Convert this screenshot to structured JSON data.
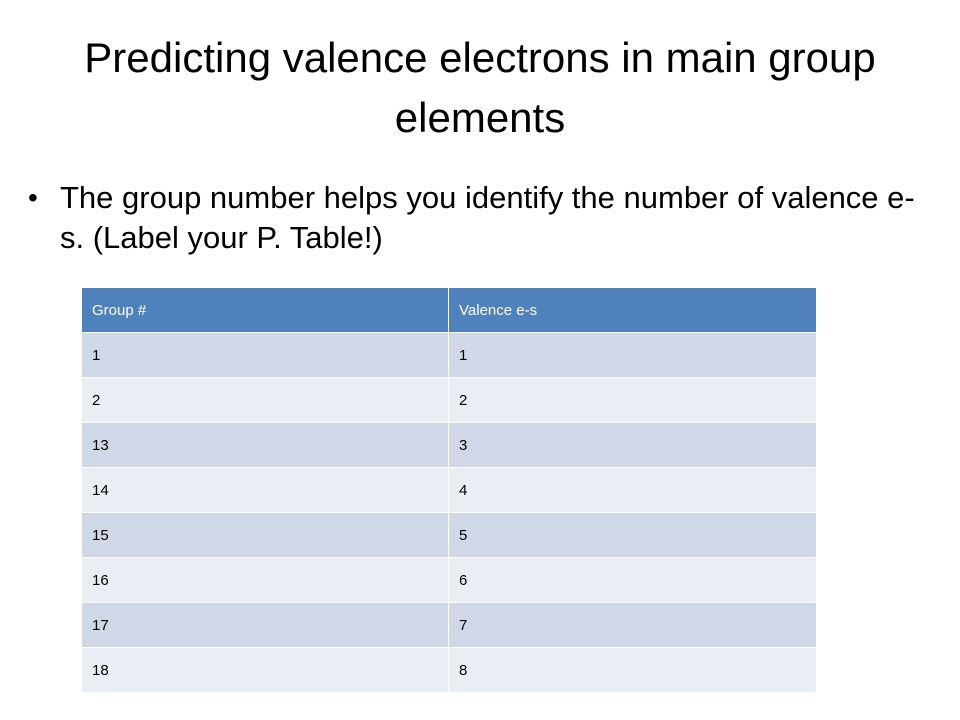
{
  "slide": {
    "title": "Predicting valence electrons in main group elements",
    "bullet": "The group number helps you identify the number of valence e-s. (Label your P. Table!)"
  },
  "table": {
    "headers": [
      "Group #",
      "Valence e-s"
    ],
    "rows": [
      [
        "1",
        "1"
      ],
      [
        "2",
        "2"
      ],
      [
        "13",
        "3"
      ],
      [
        "14",
        "4"
      ],
      [
        "15",
        "5"
      ],
      [
        "16",
        "6"
      ],
      [
        "17",
        "7"
      ],
      [
        "18",
        "8"
      ]
    ]
  },
  "colors": {
    "header_bg": "#4f81bd",
    "row_odd_bg": "#d0d8e8",
    "row_even_bg": "#e9edf4"
  }
}
